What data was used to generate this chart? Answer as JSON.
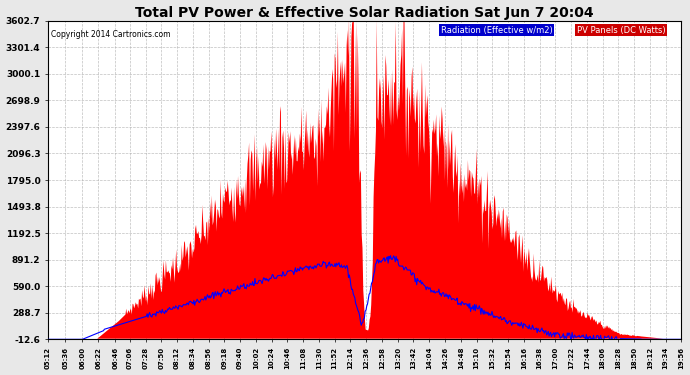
{
  "title": "Total PV Power & Effective Solar Radiation Sat Jun 7 20:04",
  "copyright": "Copyright 2014 Cartronics.com",
  "bg_color": "#e8e8e8",
  "plot_bg_color": "#ffffff",
  "grid_color": "#b0b0b0",
  "y_min": -12.6,
  "y_max": 3602.7,
  "y_ticks": [
    -12.6,
    288.7,
    590.0,
    891.2,
    1192.5,
    1493.8,
    1795.0,
    2096.3,
    2397.6,
    2698.9,
    3000.1,
    3301.4,
    3602.7
  ],
  "legend_radiation_label": "Radiation (Effective w/m2)",
  "legend_pv_label": "PV Panels (DC Watts)",
  "legend_radiation_bg": "#0000cc",
  "legend_pv_bg": "#cc0000",
  "fill_color": "#ff0000",
  "line_color": "#0000ff",
  "x_tick_labels": [
    "05:12",
    "05:36",
    "06:00",
    "06:22",
    "06:46",
    "07:06",
    "07:28",
    "07:50",
    "08:12",
    "08:34",
    "08:56",
    "09:18",
    "09:40",
    "10:02",
    "10:24",
    "10:46",
    "11:08",
    "11:30",
    "11:52",
    "12:14",
    "12:36",
    "12:58",
    "13:20",
    "13:42",
    "14:04",
    "14:26",
    "14:48",
    "15:10",
    "15:32",
    "15:54",
    "16:16",
    "16:38",
    "17:00",
    "17:22",
    "17:44",
    "18:06",
    "18:28",
    "18:50",
    "19:12",
    "19:34",
    "19:56"
  ]
}
